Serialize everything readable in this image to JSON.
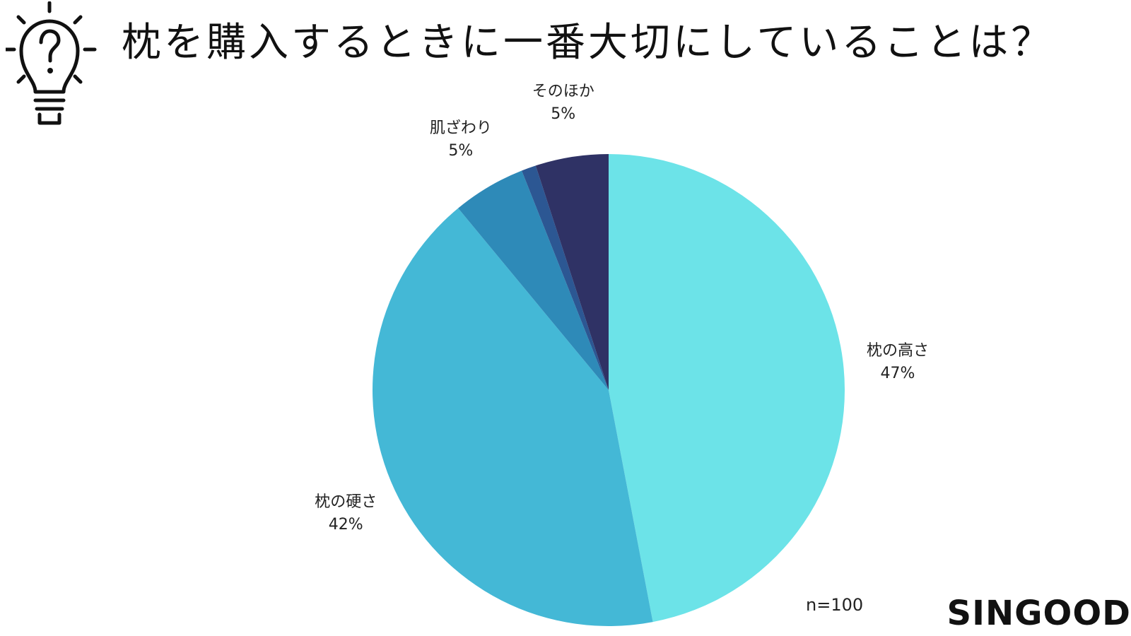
{
  "header": {
    "icon": "lightbulb-question-icon",
    "title": "枕を購入するときに一番大切にしていることは？"
  },
  "chart_data": {
    "type": "pie",
    "title": "枕を購入するときに一番大切にしていることは？",
    "start": "12 o'clock, clockwise",
    "slices": [
      {
        "label": "枕の高さ",
        "value": 47,
        "display": "47%",
        "color": "#6ce3e8",
        "labeled": true
      },
      {
        "label": "枕の硬さ",
        "value": 42,
        "display": "42%",
        "color": "#44b8d6",
        "labeled": true
      },
      {
        "label": "肌ざわり",
        "value": 5,
        "display": "5%",
        "color": "#2e8ab8",
        "labeled": true
      },
      {
        "label": "",
        "value": 1,
        "display": "",
        "color": "#2c5793",
        "labeled": false
      },
      {
        "label": "そのほか",
        "value": 5,
        "display": "5%",
        "color": "#2f3265",
        "labeled": true
      }
    ],
    "note": "n=100"
  },
  "footer": {
    "sample_size": "n=100",
    "brand": "SINGOOD"
  }
}
